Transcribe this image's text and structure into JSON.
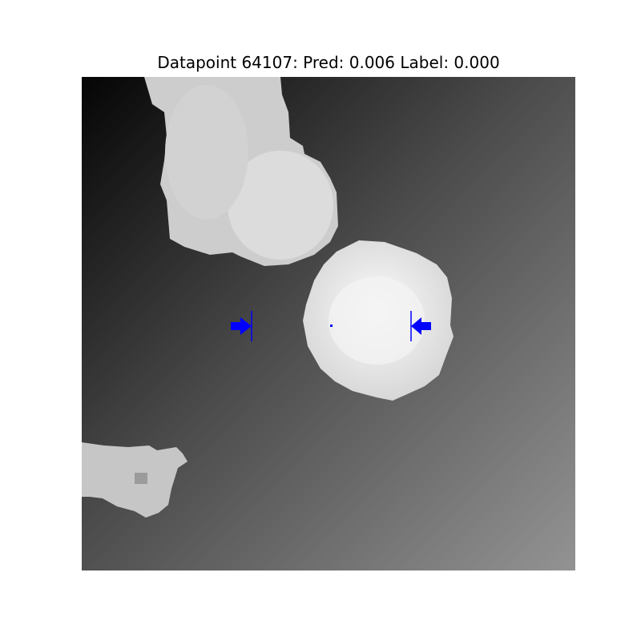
{
  "figure": {
    "title": "Datapoint 64107: Pred: 0.006 Label: 0.000"
  },
  "image": {
    "description_icon": "depth-image-grayscale",
    "background_gradient": [
      "#0a0a0a",
      "#8f8f8f"
    ],
    "marker_color": "#0000ff"
  }
}
